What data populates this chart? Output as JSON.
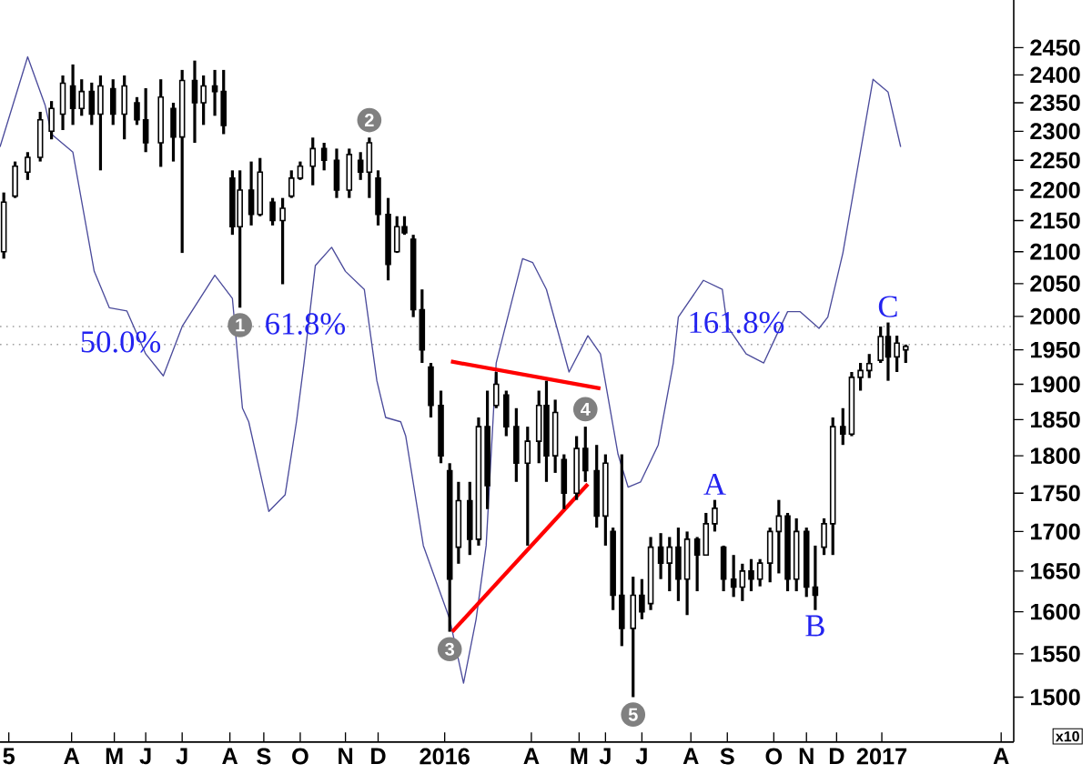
{
  "chart_data": {
    "type": "candlestick",
    "color": "#000000",
    "log": true,
    "xlim": [
      "2015-02-14",
      "2017-05-01"
    ],
    "ylim": [
      1450,
      2540
    ],
    "xticks": [
      {
        "value": "2015-02-21",
        "label": "5"
      },
      {
        "value": "2015-04-12",
        "label": "A"
      },
      {
        "value": "2015-05-16",
        "label": "M"
      },
      {
        "value": "2015-06-10",
        "label": "J"
      },
      {
        "value": "2015-07-09",
        "label": "J"
      },
      {
        "value": "2015-08-16",
        "label": "A"
      },
      {
        "value": "2015-09-12",
        "label": "S"
      },
      {
        "value": "2015-10-11",
        "label": "O"
      },
      {
        "value": "2015-11-16",
        "label": "N"
      },
      {
        "value": "2015-12-12",
        "label": "D"
      },
      {
        "value": "2016-02-03",
        "label": "2016"
      },
      {
        "value": "2016-04-12",
        "label": "A"
      },
      {
        "value": "2016-05-20",
        "label": "M"
      },
      {
        "value": "2016-06-10",
        "label": "J"
      },
      {
        "value": "2016-07-09",
        "label": "J"
      },
      {
        "value": "2016-08-17",
        "label": "A"
      },
      {
        "value": "2016-09-15",
        "label": "S"
      },
      {
        "value": "2016-10-22",
        "label": "O"
      },
      {
        "value": "2016-11-17",
        "label": "N"
      },
      {
        "value": "2016-12-11",
        "label": "D"
      },
      {
        "value": "2017-01-16",
        "label": "2017"
      },
      {
        "value": "2017-04-21",
        "label": "A"
      }
    ],
    "yticks": [
      1500,
      1550,
      1600,
      1650,
      1700,
      1750,
      1800,
      1850,
      1900,
      1950,
      2000,
      2050,
      2100,
      2150,
      2200,
      2250,
      2300,
      2350,
      2400,
      2450
    ],
    "x": [
      "2015-02-17",
      "2015-02-26",
      "2015-03-08",
      "2015-03-18",
      "2015-03-27",
      "2015-04-05",
      "2015-04-13",
      "2015-04-20",
      "2015-04-28",
      "2015-05-05",
      "2015-05-15",
      "2015-05-24",
      "2015-06-03",
      "2015-06-10",
      "2015-06-22",
      "2015-07-02",
      "2015-07-09",
      "2015-07-19",
      "2015-07-26",
      "2015-08-04",
      "2015-08-11",
      "2015-08-18",
      "2015-08-24",
      "2015-09-02",
      "2015-09-09",
      "2015-09-19",
      "2015-09-27",
      "2015-10-04",
      "2015-10-11",
      "2015-10-21",
      "2015-10-30",
      "2015-11-09",
      "2015-11-19",
      "2015-11-28",
      "2015-12-05",
      "2015-12-12",
      "2015-12-20",
      "2015-12-27",
      "2016-01-02",
      "2016-01-09",
      "2016-01-16",
      "2016-01-23",
      "2016-01-31",
      "2016-02-07",
      "2016-02-14",
      "2016-02-23",
      "2016-03-01",
      "2016-03-08",
      "2016-03-15",
      "2016-03-23",
      "2016-03-31",
      "2016-04-09",
      "2016-04-18",
      "2016-04-24",
      "2016-05-01",
      "2016-05-08",
      "2016-05-18",
      "2016-05-25",
      "2016-06-03",
      "2016-06-10",
      "2016-06-16",
      "2016-06-23",
      "2016-07-02",
      "2016-07-09",
      "2016-07-16",
      "2016-07-24",
      "2016-07-31",
      "2016-08-07",
      "2016-08-14",
      "2016-08-22",
      "2016-08-29",
      "2016-09-05",
      "2016-09-12",
      "2016-09-20",
      "2016-09-27",
      "2016-10-04",
      "2016-10-11",
      "2016-10-19",
      "2016-10-26",
      "2016-11-02",
      "2016-11-09",
      "2016-11-17",
      "2016-11-24",
      "2016-12-01",
      "2016-12-08",
      "2016-12-16",
      "2016-12-23",
      "2016-12-30",
      "2017-01-06",
      "2017-01-15",
      "2017-01-21",
      "2017-01-28",
      "2017-02-04"
    ],
    "ohlc": [
      [
        2100,
        2196,
        2089,
        2180
      ],
      [
        2190,
        2248,
        2187,
        2240
      ],
      [
        2230,
        2264,
        2217,
        2255
      ],
      [
        2255,
        2334,
        2248,
        2320
      ],
      [
        2300,
        2353,
        2286,
        2340
      ],
      [
        2330,
        2399,
        2302,
        2385
      ],
      [
        2380,
        2419,
        2311,
        2340
      ],
      [
        2340,
        2392,
        2327,
        2370
      ],
      [
        2370,
        2386,
        2311,
        2330
      ],
      [
        2330,
        2399,
        2233,
        2380
      ],
      [
        2375,
        2392,
        2311,
        2330
      ],
      [
        2330,
        2399,
        2286,
        2380
      ],
      [
        2350,
        2360,
        2311,
        2320
      ],
      [
        2320,
        2376,
        2264,
        2280
      ],
      [
        2280,
        2392,
        2239,
        2360
      ],
      [
        2340,
        2350,
        2248,
        2290
      ],
      [
        2290,
        2409,
        2098,
        2390
      ],
      [
        2390,
        2426,
        2280,
        2350
      ],
      [
        2350,
        2399,
        2311,
        2380
      ],
      [
        2380,
        2409,
        2327,
        2370
      ],
      [
        2370,
        2409,
        2295,
        2310
      ],
      [
        2220,
        2233,
        2127,
        2140
      ],
      [
        2140,
        2233,
        2013,
        2200
      ],
      [
        2200,
        2248,
        2142,
        2160
      ],
      [
        2160,
        2254,
        2157,
        2230
      ],
      [
        2180,
        2187,
        2142,
        2150
      ],
      [
        2150,
        2187,
        2049,
        2170
      ],
      [
        2190,
        2233,
        2187,
        2220
      ],
      [
        2220,
        2248,
        2217,
        2240
      ],
      [
        2240,
        2289,
        2208,
        2270
      ],
      [
        2270,
        2280,
        2233,
        2250
      ],
      [
        2250,
        2270,
        2187,
        2200
      ],
      [
        2200,
        2270,
        2187,
        2260
      ],
      [
        2250,
        2264,
        2217,
        2230
      ],
      [
        2230,
        2289,
        2187,
        2280
      ],
      [
        2220,
        2233,
        2142,
        2160
      ],
      [
        2160,
        2187,
        2055,
        2080
      ],
      [
        2100,
        2157,
        2098,
        2140
      ],
      [
        2140,
        2157,
        2127,
        2130
      ],
      [
        2120,
        2127,
        1999,
        2010
      ],
      [
        2010,
        2041,
        1931,
        1950
      ],
      [
        1925,
        1931,
        1853,
        1870
      ],
      [
        1870,
        1891,
        1790,
        1800
      ],
      [
        1780,
        1790,
        1576,
        1640
      ],
      [
        1680,
        1765,
        1659,
        1740
      ],
      [
        1740,
        1765,
        1670,
        1690
      ],
      [
        1690,
        1853,
        1682,
        1840
      ],
      [
        1840,
        1891,
        1729,
        1760
      ],
      [
        1870,
        1918,
        1866,
        1900
      ],
      [
        1885,
        1891,
        1827,
        1840
      ],
      [
        1840,
        1866,
        1765,
        1790
      ],
      [
        1790,
        1840,
        1682,
        1820
      ],
      [
        1820,
        1891,
        1790,
        1870
      ],
      [
        1870,
        1905,
        1765,
        1800
      ],
      [
        1800,
        1878,
        1777,
        1860
      ],
      [
        1795,
        1802,
        1729,
        1750
      ],
      [
        1750,
        1827,
        1741,
        1810
      ],
      [
        1810,
        1840,
        1765,
        1780
      ],
      [
        1780,
        1815,
        1705,
        1720
      ],
      [
        1720,
        1802,
        1682,
        1790
      ],
      [
        1700,
        1705,
        1602,
        1620
      ],
      [
        1620,
        1802,
        1559,
        1580
      ],
      [
        1580,
        1643,
        1500,
        1620
      ],
      [
        1620,
        1640,
        1591,
        1600
      ],
      [
        1610,
        1693,
        1602,
        1680
      ],
      [
        1680,
        1698,
        1640,
        1660
      ],
      [
        1660,
        1693,
        1625,
        1680
      ],
      [
        1680,
        1705,
        1613,
        1640
      ],
      [
        1640,
        1700,
        1596,
        1690
      ],
      [
        1690,
        1693,
        1625,
        1670
      ],
      [
        1670,
        1724,
        1670,
        1710
      ],
      [
        1710,
        1741,
        1700,
        1730
      ],
      [
        1680,
        1682,
        1625,
        1640
      ],
      [
        1640,
        1670,
        1618,
        1630
      ],
      [
        1630,
        1659,
        1613,
        1650
      ],
      [
        1650,
        1665,
        1625,
        1640
      ],
      [
        1640,
        1665,
        1631,
        1660
      ],
      [
        1660,
        1705,
        1636,
        1700
      ],
      [
        1700,
        1741,
        1647,
        1720
      ],
      [
        1720,
        1724,
        1625,
        1640
      ],
      [
        1640,
        1717,
        1625,
        1700
      ],
      [
        1700,
        1705,
        1618,
        1630
      ],
      [
        1630,
        1682,
        1602,
        1620
      ],
      [
        1680,
        1717,
        1670,
        1710
      ],
      [
        1710,
        1853,
        1670,
        1840
      ],
      [
        1840,
        1866,
        1815,
        1830
      ],
      [
        1830,
        1918,
        1827,
        1910
      ],
      [
        1910,
        1931,
        1891,
        1920
      ],
      [
        1920,
        1944,
        1909,
        1930
      ],
      [
        1935,
        1985,
        1931,
        1970
      ],
      [
        1970,
        1991,
        1905,
        1940
      ],
      [
        1940,
        1971,
        1918,
        1960
      ],
      [
        1950,
        1958,
        1931,
        1955
      ]
    ],
    "series": [
      {
        "type": "line",
        "color": "#4b4b9b",
        "x": [
          "2015-02-14",
          "2015-03-08",
          "2015-03-22",
          "2015-03-27",
          "2015-04-13",
          "2015-04-30",
          "2015-05-12",
          "2015-05-26",
          "2015-06-10",
          "2015-06-24",
          "2015-07-09",
          "2015-08-04",
          "2015-08-18",
          "2015-08-26",
          "2015-08-31",
          "2015-09-16",
          "2015-09-29",
          "2015-10-08",
          "2015-10-14",
          "2015-10-23",
          "2015-11-05",
          "2015-11-16",
          "2015-12-01",
          "2015-12-11",
          "2015-12-18",
          "2015-12-30",
          "2016-01-03",
          "2016-01-17",
          "2016-02-07",
          "2016-02-18",
          "2016-02-28",
          "2016-03-07",
          "2016-03-15",
          "2016-04-05",
          "2016-04-13",
          "2016-04-24",
          "2016-05-12",
          "2016-05-27",
          "2016-06-06",
          "2016-06-20",
          "2016-06-28",
          "2016-07-08",
          "2016-07-22",
          "2016-08-03",
          "2016-08-07",
          "2016-08-27",
          "2016-09-11",
          "2016-09-15",
          "2016-09-30",
          "2016-10-14",
          "2016-10-24",
          "2016-11-02",
          "2016-11-12",
          "2016-11-27",
          "2016-12-04",
          "2016-12-16",
          "2017-01-09",
          "2017-01-21",
          "2017-01-31"
        ],
        "values": [
          2273,
          2433,
          2345,
          2295,
          2264,
          2069,
          2013,
          2008,
          1944,
          1912,
          1985,
          2063,
          2027,
          1866,
          1847,
          1726,
          1748,
          1847,
          1931,
          2078,
          2107,
          2069,
          2041,
          1905,
          1853,
          1847,
          1827,
          1682,
          1591,
          1516,
          1591,
          1682,
          1931,
          2089,
          2083,
          2041,
          1918,
          1971,
          1944,
          1802,
          1758,
          1765,
          1815,
          1931,
          1999,
          2055,
          2041,
          1985,
          1944,
          1931,
          1971,
          2007,
          2007,
          1982,
          1999,
          2098,
          2392,
          2369,
          2273
        ]
      },
      {
        "type": "line",
        "color": "#ff0000",
        "x": [
          "2016-02-08",
          "2016-06-06"
        ],
        "values": [
          1933,
          1894
        ]
      },
      {
        "type": "line",
        "color": "#ff0000",
        "x": [
          "2016-02-09",
          "2016-05-27"
        ],
        "values": [
          1576,
          1762
        ]
      }
    ],
    "ref_lines": [
      {
        "axis": "y",
        "value": 1985,
        "color": "#a0a0a0",
        "line_style": "dotted"
      },
      {
        "axis": "y",
        "value": 1958,
        "color": "#a0a0a0",
        "line_style": "dotted"
      }
    ],
    "annotations": [
      {
        "text": "1",
        "x": "2015-08-24",
        "y": 2013
      },
      {
        "text": "2",
        "x": "2015-12-05",
        "y": 2289
      },
      {
        "text": "3",
        "x": "2016-02-07",
        "y": 1576
      },
      {
        "text": "4",
        "x": "2016-05-25",
        "y": 1840
      },
      {
        "text": "5",
        "x": "2016-07-02",
        "y": 1500
      },
      {
        "text": "50.0%",
        "x": "2015-05-21",
        "y": 1962
      },
      {
        "text": "61.8%",
        "x": "2015-10-15",
        "y": 1989
      },
      {
        "text": "161.8%",
        "x": "2016-09-22",
        "y": 1991
      },
      {
        "text": "A",
        "x": "2016-09-05",
        "y": 1741
      },
      {
        "text": "B",
        "x": "2016-11-24",
        "y": 1602
      },
      {
        "text": "C",
        "x": "2017-01-21",
        "y": 1991
      },
      "x10"
    ]
  }
}
